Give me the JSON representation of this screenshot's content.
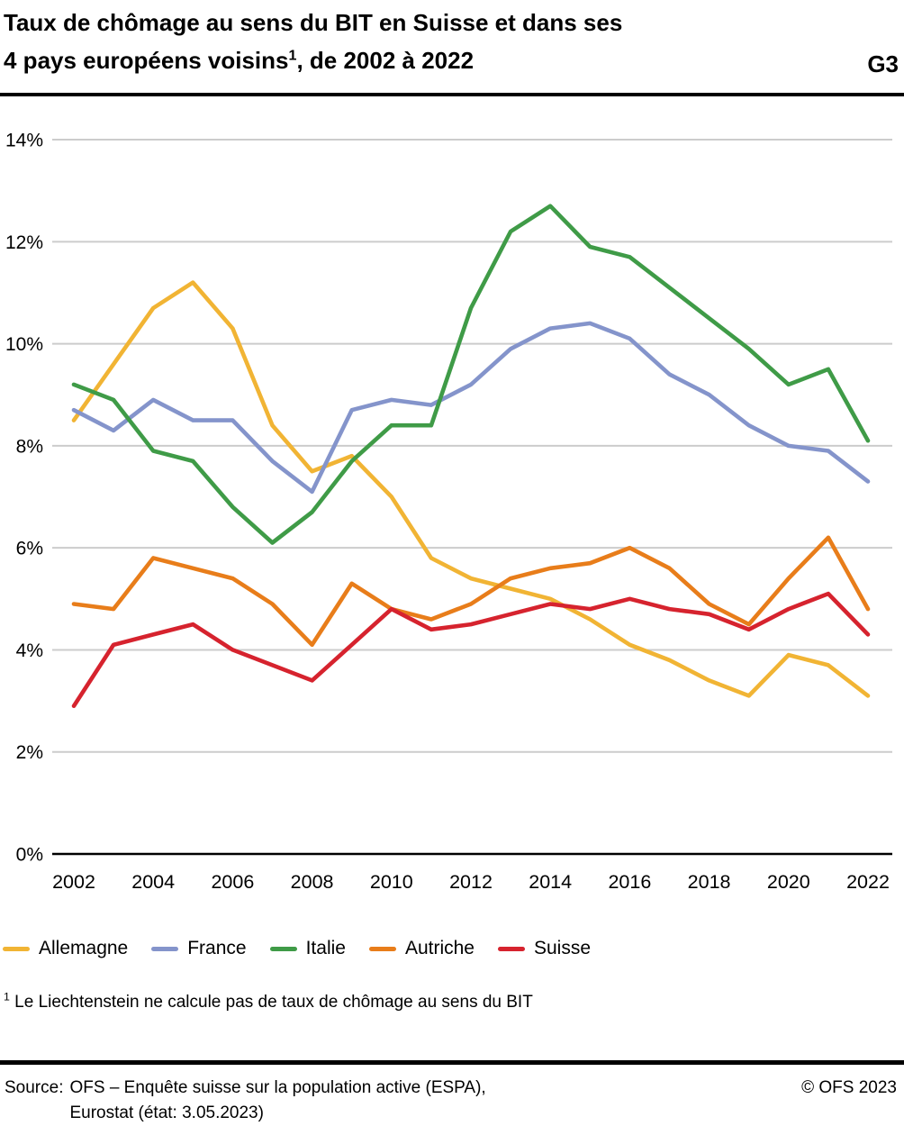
{
  "header": {
    "title_line1": "Taux de chômage au sens du BIT en Suisse et dans ses",
    "title_line2_pre": "4 pays européens voisins",
    "title_line2_sup": "1",
    "title_line2_post": ", de 2002 à 2022",
    "graphic_number": "G3"
  },
  "chart_data": {
    "type": "line",
    "title": "Taux de chômage au sens du BIT en Suisse et dans ses 4 pays européens voisins, de 2002 à 2022",
    "x": [
      2002,
      2003,
      2004,
      2005,
      2006,
      2007,
      2008,
      2009,
      2010,
      2011,
      2012,
      2013,
      2014,
      2015,
      2016,
      2017,
      2018,
      2019,
      2020,
      2021,
      2022
    ],
    "x_tick_labels": [
      "2002",
      "2004",
      "2006",
      "2008",
      "2010",
      "2012",
      "2014",
      "2016",
      "2018",
      "2020",
      "2022"
    ],
    "y_tick_labels": [
      "0%",
      "2%",
      "4%",
      "6%",
      "8%",
      "10%",
      "12%",
      "14%"
    ],
    "ylim": [
      0,
      14
    ],
    "y_tick_step": 2,
    "unit": "%",
    "grid": true,
    "legend_position": "bottom",
    "series": [
      {
        "name": "Allemagne",
        "color": "#F1B434",
        "values": [
          8.5,
          9.6,
          10.7,
          11.2,
          10.3,
          8.4,
          7.5,
          7.8,
          7.0,
          5.8,
          5.4,
          5.2,
          5.0,
          4.6,
          4.1,
          3.8,
          3.4,
          3.1,
          3.9,
          3.7,
          3.1
        ]
      },
      {
        "name": "France",
        "color": "#8494CB",
        "values": [
          8.7,
          8.3,
          8.9,
          8.5,
          8.5,
          7.7,
          7.1,
          8.7,
          8.9,
          8.8,
          9.2,
          9.9,
          10.3,
          10.4,
          10.1,
          9.4,
          9.0,
          8.4,
          8.0,
          7.9,
          7.3
        ]
      },
      {
        "name": "Italie",
        "color": "#3F9B47",
        "values": [
          9.2,
          8.9,
          7.9,
          7.7,
          6.8,
          6.1,
          6.7,
          7.7,
          8.4,
          8.4,
          10.7,
          12.2,
          12.7,
          11.9,
          11.7,
          11.1,
          10.5,
          9.9,
          9.2,
          9.5,
          8.1
        ]
      },
      {
        "name": "Autriche",
        "color": "#E87D1A",
        "values": [
          4.9,
          4.8,
          5.8,
          5.6,
          5.4,
          4.9,
          4.1,
          5.3,
          4.8,
          4.6,
          4.9,
          5.4,
          5.6,
          5.7,
          6.0,
          5.6,
          4.9,
          4.5,
          5.4,
          6.2,
          4.8
        ]
      },
      {
        "name": "Suisse",
        "color": "#D6232E",
        "values": [
          2.9,
          4.1,
          4.3,
          4.5,
          4.0,
          3.7,
          3.4,
          4.1,
          4.8,
          4.4,
          4.5,
          4.7,
          4.9,
          4.8,
          5.0,
          4.8,
          4.7,
          4.4,
          4.8,
          5.1,
          4.3
        ]
      }
    ]
  },
  "footnote": {
    "sup": "1",
    "text": " Le Liechtenstein ne calcule pas de taux de chômage au sens du BIT"
  },
  "source": {
    "label": "Source:",
    "line1": "OFS – Enquête suisse sur la population active (ESPA),",
    "line2": "Eurostat (état: 3.05.2023)",
    "copyright": "© OFS 2023"
  },
  "colors": {
    "grid": "#CCCCCC",
    "axis": "#000000",
    "text": "#000000"
  }
}
